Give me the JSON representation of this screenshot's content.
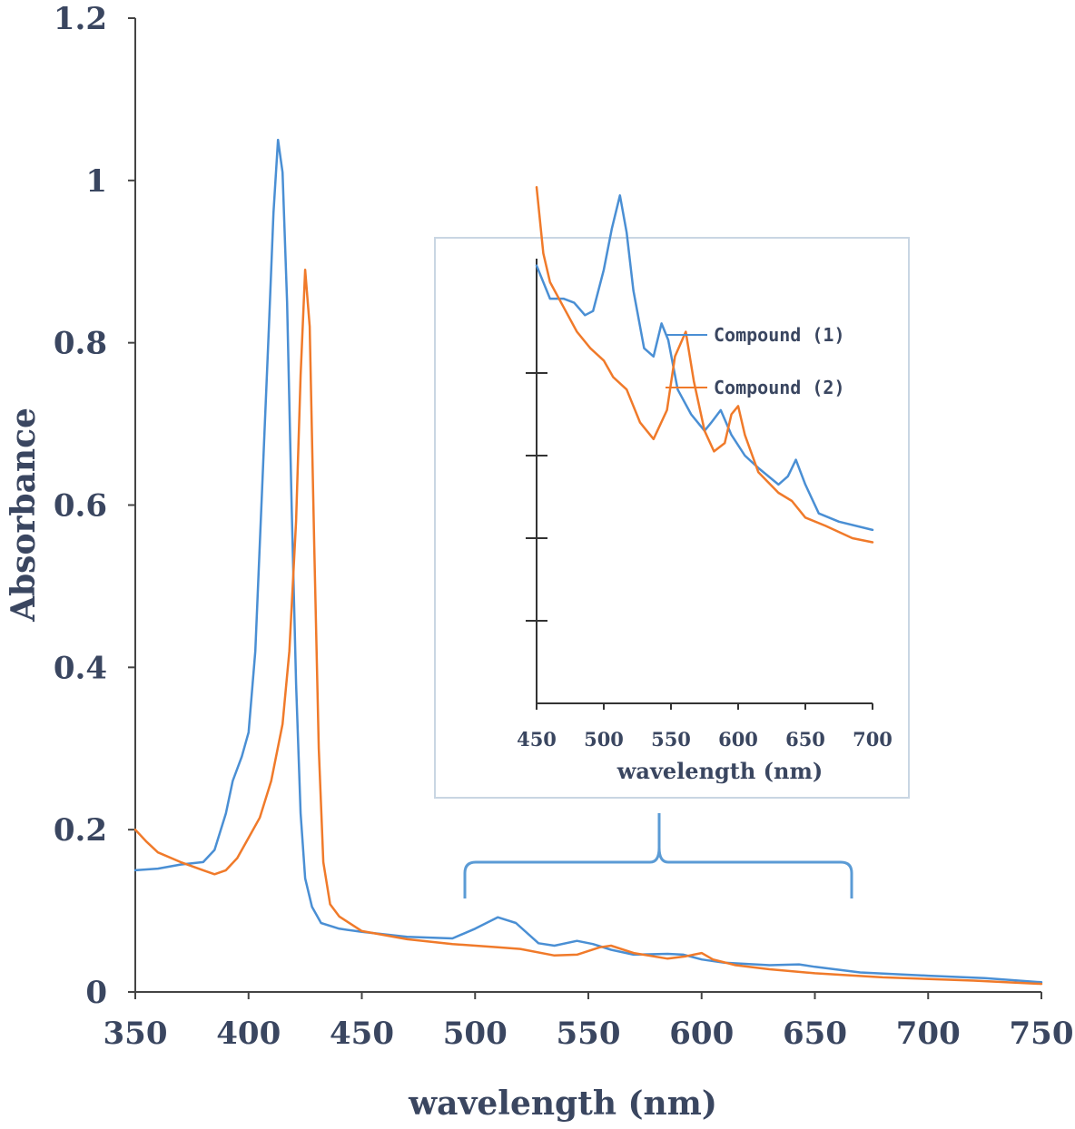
{
  "chart_data": [
    {
      "type": "line",
      "xlabel": "wavelength (nm)",
      "ylabel": "Absorbance",
      "xlim": [
        350,
        750
      ],
      "ylim": [
        0,
        1.2
      ],
      "xticks": [
        350,
        400,
        450,
        500,
        550,
        600,
        650,
        700,
        750
      ],
      "xtick_labels": [
        "350",
        "400",
        "450",
        "500",
        "550",
        "600",
        "650",
        "700",
        "750"
      ],
      "yticks": [
        0,
        0.2,
        0.4,
        0.6,
        0.8,
        1.0,
        1.2
      ],
      "ytick_labels": [
        "0",
        "0.2",
        "0.4",
        "0.6",
        "0.8",
        "1",
        "1.2"
      ],
      "grid": false,
      "series": [
        {
          "name": "Compound (1)",
          "color": "#4a8fd4",
          "points": [
            [
              350,
              0.15
            ],
            [
              360,
              0.152
            ],
            [
              370,
              0.157
            ],
            [
              380,
              0.16
            ],
            [
              385,
              0.175
            ],
            [
              390,
              0.22
            ],
            [
              393,
              0.26
            ],
            [
              397,
              0.29
            ],
            [
              400,
              0.32
            ],
            [
              403,
              0.42
            ],
            [
              406,
              0.62
            ],
            [
              409,
              0.82
            ],
            [
              411,
              0.96
            ],
            [
              413,
              1.05
            ],
            [
              415,
              1.01
            ],
            [
              417,
              0.85
            ],
            [
              419,
              0.6
            ],
            [
              421,
              0.38
            ],
            [
              423,
              0.22
            ],
            [
              425,
              0.14
            ],
            [
              428,
              0.105
            ],
            [
              432,
              0.085
            ],
            [
              440,
              0.078
            ],
            [
              450,
              0.074
            ],
            [
              470,
              0.068
            ],
            [
              490,
              0.066
            ],
            [
              500,
              0.078
            ],
            [
              510,
              0.092
            ],
            [
              518,
              0.085
            ],
            [
              528,
              0.06
            ],
            [
              535,
              0.057
            ],
            [
              545,
              0.063
            ],
            [
              552,
              0.059
            ],
            [
              560,
              0.052
            ],
            [
              570,
              0.046
            ],
            [
              585,
              0.047
            ],
            [
              592,
              0.046
            ],
            [
              600,
              0.04
            ],
            [
              610,
              0.036
            ],
            [
              630,
              0.033
            ],
            [
              643,
              0.034
            ],
            [
              650,
              0.031
            ],
            [
              670,
              0.024
            ],
            [
              700,
              0.02
            ],
            [
              725,
              0.017
            ],
            [
              750,
              0.012
            ]
          ]
        },
        {
          "name": "Compound (2)",
          "color": "#f07a2a",
          "points": [
            [
              350,
              0.2
            ],
            [
              355,
              0.185
            ],
            [
              360,
              0.172
            ],
            [
              370,
              0.16
            ],
            [
              380,
              0.15
            ],
            [
              385,
              0.145
            ],
            [
              390,
              0.15
            ],
            [
              395,
              0.165
            ],
            [
              400,
              0.19
            ],
            [
              405,
              0.215
            ],
            [
              410,
              0.26
            ],
            [
              415,
              0.33
            ],
            [
              418,
              0.42
            ],
            [
              421,
              0.58
            ],
            [
              423,
              0.76
            ],
            [
              425,
              0.89
            ],
            [
              427,
              0.82
            ],
            [
              429,
              0.55
            ],
            [
              431,
              0.3
            ],
            [
              433,
              0.16
            ],
            [
              436,
              0.108
            ],
            [
              440,
              0.093
            ],
            [
              450,
              0.075
            ],
            [
              470,
              0.065
            ],
            [
              490,
              0.059
            ],
            [
              510,
              0.055
            ],
            [
              520,
              0.053
            ],
            [
              535,
              0.045
            ],
            [
              545,
              0.046
            ],
            [
              555,
              0.055
            ],
            [
              560,
              0.057
            ],
            [
              570,
              0.048
            ],
            [
              585,
              0.041
            ],
            [
              593,
              0.044
            ],
            [
              600,
              0.048
            ],
            [
              605,
              0.04
            ],
            [
              615,
              0.033
            ],
            [
              630,
              0.028
            ],
            [
              650,
              0.023
            ],
            [
              680,
              0.018
            ],
            [
              720,
              0.014
            ],
            [
              750,
              0.01
            ]
          ]
        }
      ]
    },
    {
      "type": "line",
      "xlabel": "wavelength (nm)",
      "xlim": [
        450,
        700
      ],
      "ylim": [
        0,
        0.12
      ],
      "xticks": [
        450,
        500,
        550,
        600,
        650,
        700
      ],
      "xtick_labels": [
        "450",
        "500",
        "550",
        "600",
        "650",
        "700"
      ],
      "yticks": [
        0.02,
        0.04,
        0.06,
        0.08
      ],
      "grid": false,
      "legend_position": "top-right",
      "series": [
        {
          "name": "Compound (1)",
          "color": "#4a8fd4",
          "points": [
            [
              450,
              0.106
            ],
            [
              460,
              0.098
            ],
            [
              470,
              0.098
            ],
            [
              478,
              0.097
            ],
            [
              486,
              0.094
            ],
            [
              492,
              0.095
            ],
            [
              500,
              0.105
            ],
            [
              506,
              0.115
            ],
            [
              512,
              0.123
            ],
            [
              517,
              0.114
            ],
            [
              522,
              0.1
            ],
            [
              530,
              0.086
            ],
            [
              537,
              0.084
            ],
            [
              543,
              0.092
            ],
            [
              548,
              0.088
            ],
            [
              555,
              0.076
            ],
            [
              565,
              0.07
            ],
            [
              575,
              0.066
            ],
            [
              580,
              0.068
            ],
            [
              587,
              0.071
            ],
            [
              595,
              0.065
            ],
            [
              605,
              0.06
            ],
            [
              615,
              0.057
            ],
            [
              630,
              0.053
            ],
            [
              637,
              0.055
            ],
            [
              643,
              0.059
            ],
            [
              650,
              0.053
            ],
            [
              660,
              0.046
            ],
            [
              675,
              0.044
            ],
            [
              700,
              0.042
            ]
          ]
        },
        {
          "name": "Compound (2)",
          "color": "#f07a2a",
          "points": [
            [
              450,
              0.125
            ],
            [
              455,
              0.109
            ],
            [
              460,
              0.102
            ],
            [
              470,
              0.096
            ],
            [
              480,
              0.09
            ],
            [
              490,
              0.086
            ],
            [
              500,
              0.083
            ],
            [
              507,
              0.079
            ],
            [
              517,
              0.076
            ],
            [
              527,
              0.068
            ],
            [
              537,
              0.064
            ],
            [
              547,
              0.071
            ],
            [
              553,
              0.084
            ],
            [
              561,
              0.09
            ],
            [
              567,
              0.078
            ],
            [
              575,
              0.066
            ],
            [
              582,
              0.061
            ],
            [
              590,
              0.063
            ],
            [
              595,
              0.07
            ],
            [
              600,
              0.072
            ],
            [
              605,
              0.065
            ],
            [
              615,
              0.056
            ],
            [
              630,
              0.051
            ],
            [
              640,
              0.049
            ],
            [
              650,
              0.045
            ],
            [
              665,
              0.043
            ],
            [
              685,
              0.04
            ],
            [
              700,
              0.039
            ]
          ]
        }
      ]
    }
  ]
}
